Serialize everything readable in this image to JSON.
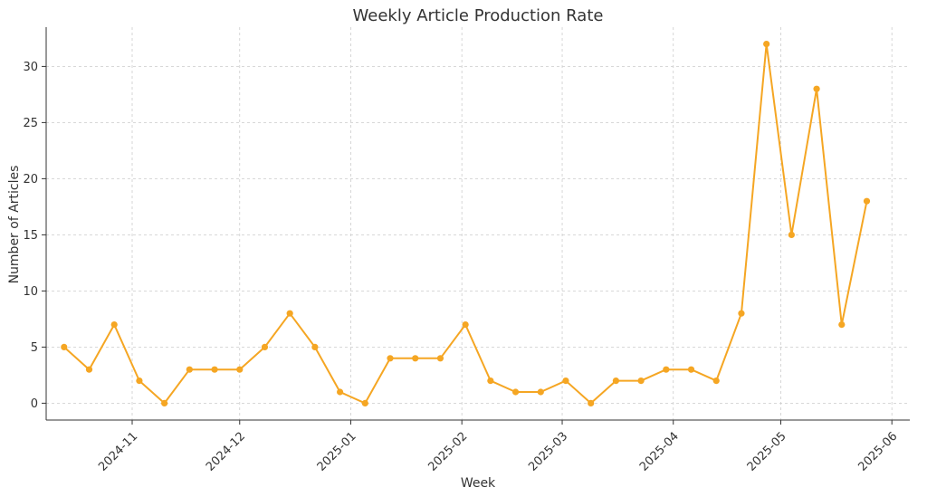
{
  "chart_data": {
    "type": "line",
    "title": "Weekly Article Production Rate",
    "xlabel": "Week",
    "ylabel": "Number of Articles",
    "x_ticks": [
      "2024-11",
      "2024-12",
      "2025-01",
      "2025-02",
      "2025-03",
      "2025-04",
      "2025-05",
      "2025-06"
    ],
    "y_ticks": [
      "0",
      "5",
      "10",
      "15",
      "20",
      "25",
      "30"
    ],
    "ylim": [
      -1.5,
      33.5
    ],
    "xlim": [
      "2024-10-08",
      "2025-06-06"
    ],
    "grid": true,
    "color": "#F5A623",
    "series": [
      {
        "x": [
          "2024-10-13",
          "2024-10-20",
          "2024-10-27",
          "2024-11-03",
          "2024-11-10",
          "2024-11-17",
          "2024-11-24",
          "2024-12-01",
          "2024-12-08",
          "2024-12-15",
          "2024-12-22",
          "2024-12-29",
          "2025-01-05",
          "2025-01-12",
          "2025-01-19",
          "2025-01-26",
          "2025-02-02",
          "2025-02-09",
          "2025-02-16",
          "2025-02-23",
          "2025-03-02",
          "2025-03-09",
          "2025-03-16",
          "2025-03-23",
          "2025-03-30",
          "2025-04-06",
          "2025-04-13",
          "2025-04-20",
          "2025-04-27",
          "2025-05-04",
          "2025-05-11",
          "2025-05-18",
          "2025-05-25"
        ],
        "values": [
          5,
          3,
          7,
          2,
          0,
          3,
          3,
          3,
          5,
          8,
          5,
          1,
          0,
          4,
          4,
          4,
          7,
          2,
          1,
          1,
          2,
          0,
          2,
          2,
          3,
          3,
          2,
          8,
          32,
          15,
          28,
          7,
          18
        ]
      }
    ]
  }
}
